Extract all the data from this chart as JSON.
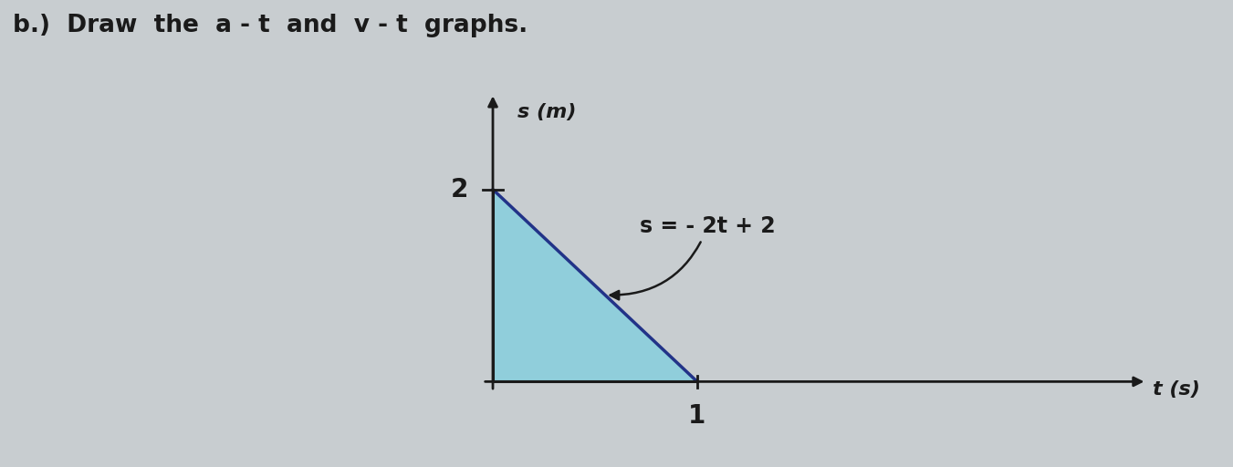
{
  "title": "b.)  Draw  the  a - t  and  v - t  graphs.",
  "ylabel": "s (m)",
  "xlabel": "t (s)",
  "line_equation_label": "s = - 2t + 2",
  "y_intercept": 2,
  "x_intercept": 1,
  "tick_y": 2,
  "tick_x": 1,
  "fill_color": "#7ecfdf",
  "fill_alpha": 0.75,
  "line_color": "#223388",
  "axis_color": "#1a1a1a",
  "bg_color": "#c8cdd0",
  "title_color": "#1a1a1a",
  "xlim": [
    -0.3,
    3.2
  ],
  "ylim": [
    -0.5,
    3.0
  ],
  "figsize": [
    13.51,
    5.12
  ],
  "dpi": 100,
  "axis_origin_x": 0,
  "axis_origin_y": 0
}
